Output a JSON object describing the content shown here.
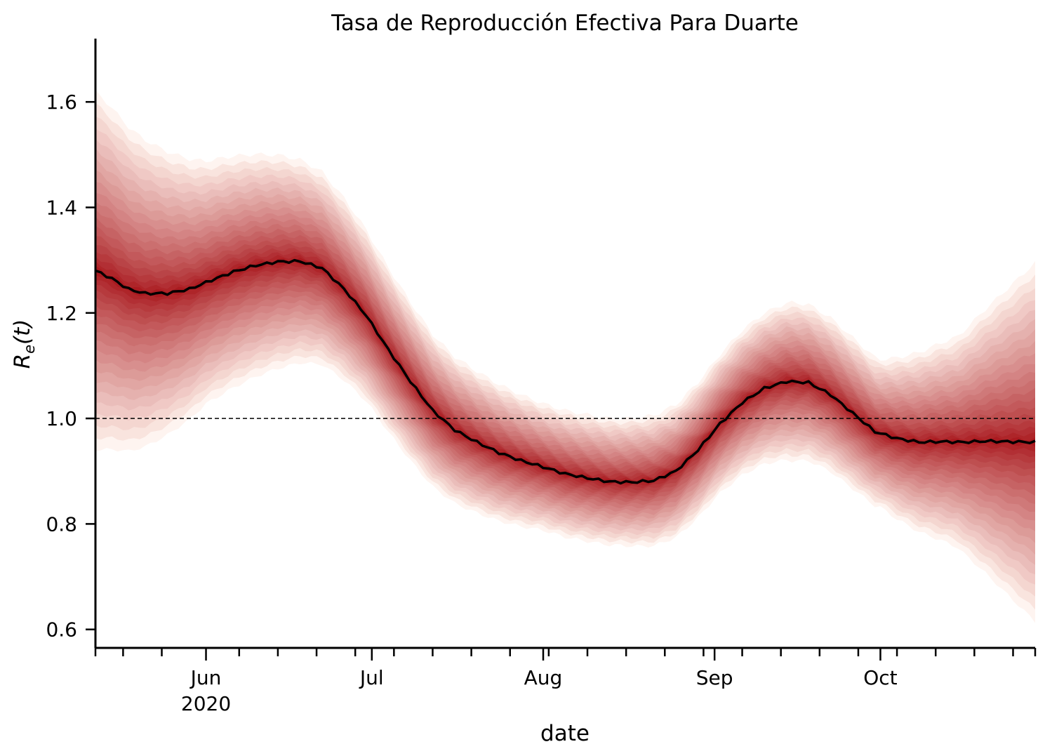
{
  "chart_data": {
    "type": "line",
    "title": "Tasa de Reproducción Efectiva Para Duarte",
    "xlabel": "date",
    "ylabel_main": "R",
    "ylabel_sub": "e",
    "ylabel_rest": "(t)",
    "x_range": [
      "2020-05-12",
      "2020-10-29"
    ],
    "ylim": [
      0.565,
      1.72
    ],
    "y_ticks": [
      {
        "value": 0.6,
        "label": "0.6"
      },
      {
        "value": 0.8,
        "label": "0.8"
      },
      {
        "value": 1.0,
        "label": "1.0"
      },
      {
        "value": 1.2,
        "label": "1.2"
      },
      {
        "value": 1.4,
        "label": "1.4"
      },
      {
        "value": 1.6,
        "label": "1.6"
      }
    ],
    "x_major_ticks": [
      {
        "date": "2020-06-01",
        "label": "Jun",
        "sublabel": "2020"
      },
      {
        "date": "2020-07-01",
        "label": "Jul",
        "sublabel": ""
      },
      {
        "date": "2020-08-01",
        "label": "Aug",
        "sublabel": ""
      },
      {
        "date": "2020-09-01",
        "label": "Sep",
        "sublabel": ""
      },
      {
        "date": "2020-10-01",
        "label": "Oct",
        "sublabel": ""
      }
    ],
    "x_minor_ticks": [
      "2020-05-12",
      "2020-05-17",
      "2020-05-24",
      "2020-06-07",
      "2020-06-14",
      "2020-06-21",
      "2020-06-28",
      "2020-07-05",
      "2020-07-12",
      "2020-07-19",
      "2020-07-26",
      "2020-08-02",
      "2020-08-09",
      "2020-08-16",
      "2020-08-23",
      "2020-08-30",
      "2020-09-06",
      "2020-09-13",
      "2020-09-20",
      "2020-09-27",
      "2020-10-04",
      "2020-10-11",
      "2020-10-18",
      "2020-10-25",
      "2020-10-29"
    ],
    "reference_line": {
      "y": 1.0,
      "style": "dashed"
    },
    "series": [
      {
        "kind": "median",
        "color": "#000000",
        "points": [
          [
            "2020-05-12",
            1.28
          ],
          [
            "2020-05-15",
            1.265
          ],
          [
            "2020-05-18",
            1.245
          ],
          [
            "2020-05-21",
            1.237
          ],
          [
            "2020-05-25",
            1.237
          ],
          [
            "2020-05-29",
            1.245
          ],
          [
            "2020-06-02",
            1.262
          ],
          [
            "2020-06-06",
            1.278
          ],
          [
            "2020-06-10",
            1.29
          ],
          [
            "2020-06-14",
            1.297
          ],
          [
            "2020-06-18",
            1.298
          ],
          [
            "2020-06-22",
            1.285
          ],
          [
            "2020-06-26",
            1.245
          ],
          [
            "2020-06-30",
            1.195
          ],
          [
            "2020-07-04",
            1.13
          ],
          [
            "2020-07-08",
            1.07
          ],
          [
            "2020-07-12",
            1.015
          ],
          [
            "2020-07-16",
            0.978
          ],
          [
            "2020-07-20",
            0.955
          ],
          [
            "2020-07-24",
            0.935
          ],
          [
            "2020-07-28",
            0.92
          ],
          [
            "2020-08-01",
            0.908
          ],
          [
            "2020-08-05",
            0.895
          ],
          [
            "2020-08-09",
            0.887
          ],
          [
            "2020-08-13",
            0.88
          ],
          [
            "2020-08-17",
            0.879
          ],
          [
            "2020-08-21",
            0.882
          ],
          [
            "2020-08-25",
            0.9
          ],
          [
            "2020-08-29",
            0.94
          ],
          [
            "2020-09-02",
            0.99
          ],
          [
            "2020-09-06",
            1.03
          ],
          [
            "2020-09-10",
            1.057
          ],
          [
            "2020-09-14",
            1.07
          ],
          [
            "2020-09-18",
            1.068
          ],
          [
            "2020-09-22",
            1.045
          ],
          [
            "2020-09-26",
            1.01
          ],
          [
            "2020-09-30",
            0.975
          ],
          [
            "2020-10-04",
            0.962
          ],
          [
            "2020-10-08",
            0.955
          ],
          [
            "2020-10-12",
            0.956
          ],
          [
            "2020-10-16",
            0.955
          ],
          [
            "2020-10-20",
            0.957
          ],
          [
            "2020-10-24",
            0.956
          ],
          [
            "2020-10-29",
            0.955
          ]
        ]
      },
      {
        "kind": "uncertainty_band",
        "color_inner": "#a50f15",
        "color_outer": "#fee0d2",
        "outer_halfwidth": [
          [
            "2020-05-12",
            0.34
          ],
          [
            "2020-06-01",
            0.23
          ],
          [
            "2020-06-15",
            0.2
          ],
          [
            "2020-07-01",
            0.16
          ],
          [
            "2020-07-15",
            0.14
          ],
          [
            "2020-08-01",
            0.12
          ],
          [
            "2020-08-15",
            0.12
          ],
          [
            "2020-09-01",
            0.13
          ],
          [
            "2020-09-15",
            0.15
          ],
          [
            "2020-10-01",
            0.14
          ],
          [
            "2020-10-15",
            0.2
          ],
          [
            "2020-10-29",
            0.34
          ]
        ]
      }
    ]
  }
}
